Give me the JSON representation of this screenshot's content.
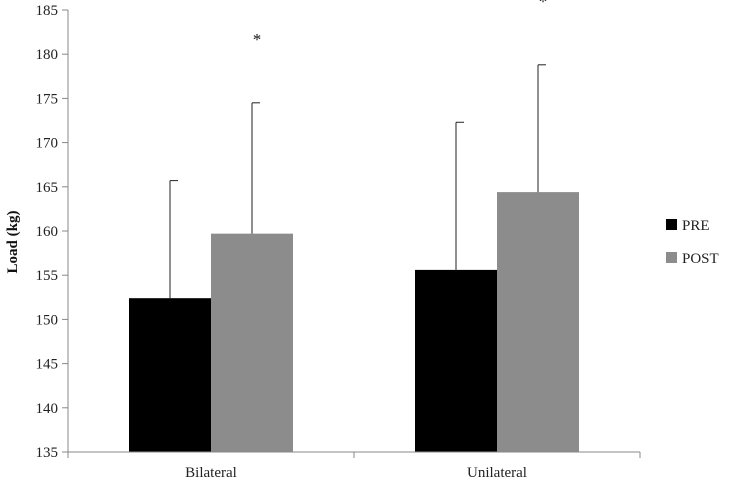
{
  "chart_data": {
    "type": "bar",
    "categories": [
      "Bilateral",
      "Unilateral"
    ],
    "series": [
      {
        "name": "PRE",
        "values": [
          152.4,
          155.6
        ],
        "error": [
          13.3,
          16.7
        ],
        "color": "#000000"
      },
      {
        "name": "POST",
        "values": [
          159.7,
          164.4
        ],
        "error": [
          14.8,
          14.4
        ],
        "color": "#8c8c8c"
      }
    ],
    "title": "",
    "xlabel": "",
    "ylabel": "Load (kg)",
    "ylim": [
      135,
      185
    ],
    "yticks": [
      135,
      140,
      145,
      150,
      155,
      160,
      165,
      170,
      175,
      180,
      185
    ],
    "ytick_labels": [
      "135",
      "140",
      "145",
      "150",
      "155",
      "160",
      "165",
      "170",
      "175",
      "180",
      "185"
    ],
    "annotations": [
      "*",
      "*"
    ],
    "grid": false,
    "legend_position": "right"
  }
}
